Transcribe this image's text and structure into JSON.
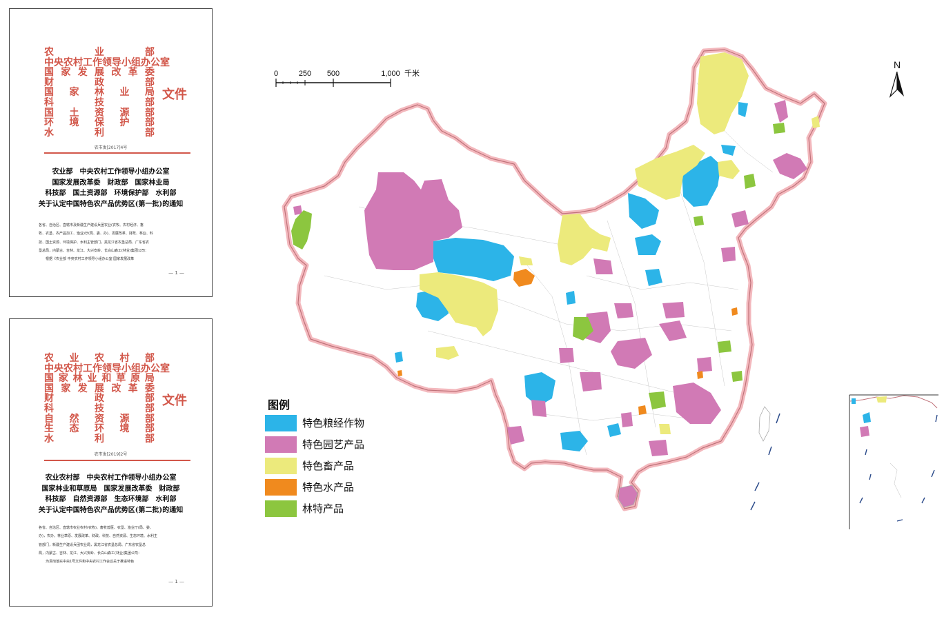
{
  "documents": [
    {
      "ministry_rows": [
        [
          "农",
          "业",
          "部"
        ],
        [
          "中央农村工作领导小组办公室"
        ],
        [
          "国",
          "家",
          "发",
          "展",
          "改",
          "革",
          "委"
        ],
        [
          "财",
          "政",
          "部"
        ],
        [
          "国",
          "家",
          "林",
          "业",
          "局"
        ],
        [
          "科",
          "技",
          "部"
        ],
        [
          "国",
          "土",
          "资",
          "源",
          "部"
        ],
        [
          "环",
          "境",
          "保",
          "护",
          "部"
        ],
        [
          "水",
          "利",
          "部"
        ]
      ],
      "suffix": "文件",
      "doc_number": "农市发[2017]4号",
      "title_lines": [
        "农业部　中央农村工作领导小组办公室",
        "国家发展改革委　财政部　国家林业局",
        "科技部　国土资源部　环境保护部　水利部",
        "关于认定中国特色农产品优势区(第一批)的通知"
      ],
      "body_lines": [
        "各省、自治区、直辖市及新疆生产建设兵团农业(农牧、农村经济、畜",
        "牧、农垦、农产品加工、渔业)厅(局、委、办)、发展改革、财政、林业、科",
        "技、国土资源、环境保护、水利主管部门，黑龙江省农垦总局、广东省农",
        "垦总局，内蒙古、吉林、龙江、大兴安岭、长白山森工(林业)集团公司：",
        "　　根据《农业部 中央农村工作领导小组办公室 国家发展改革"
      ],
      "page_number": "— 1 —"
    },
    {
      "ministry_rows": [
        [
          "农",
          "业",
          "农",
          "村",
          "部"
        ],
        [
          "中央农村工作领导小组办公室"
        ],
        [
          "国",
          "家",
          "林",
          "业",
          "和",
          "草",
          "原",
          "局"
        ],
        [
          "国",
          "家",
          "发",
          "展",
          "改",
          "革",
          "委"
        ],
        [
          "财",
          "政",
          "部"
        ],
        [
          "科",
          "技",
          "部"
        ],
        [
          "自",
          "然",
          "资",
          "源",
          "部"
        ],
        [
          "生",
          "态",
          "环",
          "境",
          "部"
        ],
        [
          "水",
          "利",
          "部"
        ]
      ],
      "suffix": "文件",
      "doc_number": "农市发[2019]2号",
      "title_lines": [
        "农业农村部　中央农村工作领导小组办公室",
        "国家林业和草原局　国家发展改革委　财政部",
        "科技部　自然资源部　生态环境部　水利部",
        "关于认定中国特色农产品优势区(第二批)的通知"
      ],
      "body_lines": [
        "各省、自治区、直辖市农业农村(农牧)、畜牧兽医、农垦、渔业厅(局、委、",
        "办)，农办，林业草原、发展改革、财政、科技、自然资源、生态环境、水利主",
        "管部门，新疆生产建设兵团农业局，黑龙江省农垦总局、广东省农垦总",
        "局，内蒙古、吉林、龙江、大兴安岭、长白山森工(林业)集团公司：",
        "　　为贯彻落实中央1号文件和中央农村工作会议关于推进特色"
      ],
      "page_number": "— 1 —"
    }
  ],
  "map": {
    "scale_bar": {
      "ticks": [
        "0",
        "250",
        "500",
        "1,000"
      ],
      "unit": "千米"
    },
    "north_arrow": "N",
    "colors": {
      "boundary_glow": "#f3b8bd",
      "boundary": "#c0727a",
      "grain": "#2cb4e8",
      "horticulture": "#d17ab5",
      "livestock": "#ecea7c",
      "aquatic": "#f08a1e",
      "forest": "#8cc63f"
    },
    "legend": {
      "title": "图例",
      "items": [
        {
          "label": "特色粮经作物",
          "color": "#2cb4e8"
        },
        {
          "label": "特色园艺产品",
          "color": "#d17ab5"
        },
        {
          "label": "特色畜产品",
          "color": "#ecea7c"
        },
        {
          "label": "特色水产品",
          "color": "#f08a1e"
        },
        {
          "label": "林特产品",
          "color": "#8cc63f"
        }
      ]
    }
  }
}
